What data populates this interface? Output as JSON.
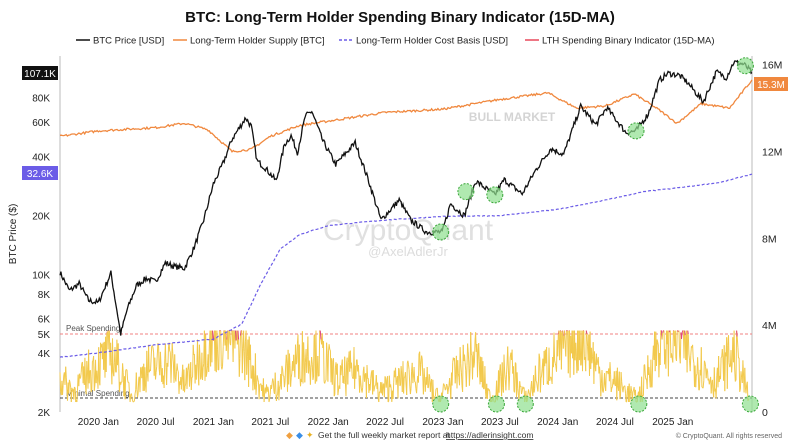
{
  "chart_data": {
    "type": "line",
    "title": "BTC: Long-Term Holder Spending Binary Indicator (15D-MA)",
    "ylabel": "BTC Price ($)",
    "y_scale": "log",
    "ylim": [
      2000,
      130000
    ],
    "y_ticks": [
      "2K",
      "4K",
      "5K",
      "6K",
      "8K",
      "10K",
      "20K",
      "40K",
      "60K",
      "80K"
    ],
    "y_tick_values": [
      2000,
      4000,
      5000,
      6000,
      8000,
      10000,
      20000,
      40000,
      60000,
      80000
    ],
    "y2_ticks": [
      "0",
      "4M",
      "8M",
      "12M",
      "16M"
    ],
    "y2_tick_values": [
      0,
      4,
      8,
      12,
      16
    ],
    "y2_unit": "M BTC",
    "y2_lim": [
      0,
      16.4
    ],
    "x_range": [
      "2019-09-01",
      "2025-09-10"
    ],
    "x_ticks": [
      "2020 Jan",
      "2020 Jul",
      "2021 Jan",
      "2021 Jul",
      "2022 Jan",
      "2022 Jul",
      "2023 Jan",
      "2023 Jul",
      "2024 Jan",
      "2024 Jul",
      "2025 Jan"
    ],
    "x_tick_dates": [
      "2020-01-01",
      "2020-07-01",
      "2021-01-01",
      "2021-07-01",
      "2022-01-01",
      "2022-07-01",
      "2023-01-01",
      "2023-07-01",
      "2024-01-01",
      "2024-07-01",
      "2025-01-01"
    ],
    "legend": {
      "placement": "top",
      "entries": [
        {
          "label": "BTC Price [USD]",
          "color": "#111111",
          "style": "solid"
        },
        {
          "label": "Long-Term Holder Supply [BTC]",
          "color": "#f0883e",
          "style": "solid"
        },
        {
          "label": "Long-Term Holder Cost Basis [USD]",
          "color": "#6b5ce7",
          "style": "dashed"
        },
        {
          "label": "LTH Spending Binary Indicator (15D-MA)",
          "color": "#e8485a",
          "style": "solid"
        }
      ]
    },
    "current_price_badge": "107.1K",
    "cost_basis_badge": "32.6K",
    "supply_badge": "15.3M",
    "annotations": {
      "peak": "Peak Spending",
      "minimal": "Minimal Spending",
      "bull": "BULL MARKET"
    },
    "btc_price": [
      [
        "2019-09-01",
        10300
      ],
      [
        "2019-10-01",
        8300
      ],
      [
        "2019-11-01",
        9000
      ],
      [
        "2019-12-01",
        7400
      ],
      [
        "2020-01-01",
        7200
      ],
      [
        "2020-02-10",
        10200
      ],
      [
        "2020-03-12",
        5000
      ],
      [
        "2020-04-01",
        6600
      ],
      [
        "2020-05-01",
        8800
      ],
      [
        "2020-06-01",
        9600
      ],
      [
        "2020-07-01",
        9200
      ],
      [
        "2020-08-01",
        11500
      ],
      [
        "2020-09-01",
        11000
      ],
      [
        "2020-10-01",
        10800
      ],
      [
        "2020-11-01",
        13800
      ],
      [
        "2020-12-01",
        19000
      ],
      [
        "2021-01-01",
        29000
      ],
      [
        "2021-02-01",
        37000
      ],
      [
        "2021-03-01",
        49000
      ],
      [
        "2021-04-14",
        63000
      ],
      [
        "2021-05-01",
        57000
      ],
      [
        "2021-05-20",
        38000
      ],
      [
        "2021-06-15",
        35000
      ],
      [
        "2021-07-20",
        30000
      ],
      [
        "2021-08-15",
        46000
      ],
      [
        "2021-09-05",
        51000
      ],
      [
        "2021-09-25",
        42000
      ],
      [
        "2021-10-20",
        64000
      ],
      [
        "2021-11-10",
        68000
      ],
      [
        "2021-12-15",
        48000
      ],
      [
        "2022-01-25",
        36500
      ],
      [
        "2022-03-28",
        47000
      ],
      [
        "2022-05-10",
        30000
      ],
      [
        "2022-06-18",
        19000
      ],
      [
        "2022-08-15",
        24000
      ],
      [
        "2022-09-20",
        19000
      ],
      [
        "2022-11-10",
        16500
      ],
      [
        "2022-12-30",
        16500
      ],
      [
        "2023-01-25",
        23000
      ],
      [
        "2023-03-10",
        20000
      ],
      [
        "2023-04-15",
        30000
      ],
      [
        "2023-06-15",
        25500
      ],
      [
        "2023-07-15",
        30500
      ],
      [
        "2023-09-10",
        25800
      ],
      [
        "2023-10-25",
        34500
      ],
      [
        "2023-12-10",
        44000
      ],
      [
        "2024-01-20",
        41000
      ],
      [
        "2024-03-14",
        72000
      ],
      [
        "2024-05-01",
        58000
      ],
      [
        "2024-06-05",
        71000
      ],
      [
        "2024-08-05",
        53000
      ],
      [
        "2024-09-06",
        54000
      ],
      [
        "2024-10-15",
        66000
      ],
      [
        "2024-11-20",
        98000
      ],
      [
        "2024-12-17",
        106000
      ],
      [
        "2025-01-20",
        104000
      ],
      [
        "2025-02-15",
        96000
      ],
      [
        "2025-04-08",
        76000
      ],
      [
        "2025-05-20",
        108000
      ],
      [
        "2025-06-20",
        101000
      ],
      [
        "2025-07-14",
        121000
      ],
      [
        "2025-08-15",
        118000
      ],
      [
        "2025-09-10",
        107100
      ]
    ],
    "lth_supply_m": [
      [
        "2019-09-01",
        12.7
      ],
      [
        "2020-01-01",
        12.95
      ],
      [
        "2020-07-01",
        13.1
      ],
      [
        "2020-10-01",
        13.3
      ],
      [
        "2020-12-15",
        13.0
      ],
      [
        "2021-03-01",
        12.0
      ],
      [
        "2021-05-01",
        12.1
      ],
      [
        "2021-07-01",
        12.7
      ],
      [
        "2021-10-01",
        13.2
      ],
      [
        "2022-01-01",
        13.4
      ],
      [
        "2022-07-01",
        13.8
      ],
      [
        "2023-01-01",
        13.95
      ],
      [
        "2023-07-01",
        14.4
      ],
      [
        "2023-12-01",
        14.7
      ],
      [
        "2024-03-01",
        14.0
      ],
      [
        "2024-06-01",
        14.1
      ],
      [
        "2024-09-01",
        14.65
      ],
      [
        "2024-11-15",
        13.95
      ],
      [
        "2025-01-15",
        13.3
      ],
      [
        "2025-04-01",
        14.2
      ],
      [
        "2025-07-01",
        14.0
      ],
      [
        "2025-09-10",
        15.3
      ]
    ],
    "lth_cost_basis": [
      [
        "2019-09-01",
        3800
      ],
      [
        "2020-01-01",
        4000
      ],
      [
        "2020-07-01",
        4400
      ],
      [
        "2021-01-01",
        4700
      ],
      [
        "2021-04-01",
        5600
      ],
      [
        "2021-06-01",
        9000
      ],
      [
        "2021-08-01",
        13500
      ],
      [
        "2021-10-01",
        16000
      ],
      [
        "2022-01-01",
        17800
      ],
      [
        "2022-07-01",
        19000
      ],
      [
        "2023-01-01",
        19800
      ],
      [
        "2023-07-01",
        20000
      ],
      [
        "2024-01-01",
        21500
      ],
      [
        "2024-06-01",
        24000
      ],
      [
        "2024-10-01",
        26500
      ],
      [
        "2025-01-01",
        27500
      ],
      [
        "2025-06-01",
        29500
      ],
      [
        "2025-09-10",
        32600
      ]
    ],
    "lth_spending_indicator": [
      [
        "2019-09-01",
        0.35
      ],
      [
        "2019-10-15",
        0.15
      ],
      [
        "2019-12-01",
        0.45
      ],
      [
        "2020-02-15",
        0.7
      ],
      [
        "2020-04-15",
        0.1
      ],
      [
        "2020-06-01",
        0.5
      ],
      [
        "2020-08-15",
        0.6
      ],
      [
        "2020-10-01",
        0.25
      ],
      [
        "2020-12-15",
        0.9
      ],
      [
        "2021-02-01",
        1.0
      ],
      [
        "2021-04-01",
        0.85
      ],
      [
        "2021-06-15",
        0.1
      ],
      [
        "2021-08-01",
        0.3
      ],
      [
        "2021-10-01",
        0.65
      ],
      [
        "2021-12-01",
        0.75
      ],
      [
        "2022-02-01",
        0.3
      ],
      [
        "2022-04-01",
        0.5
      ],
      [
        "2022-06-15",
        0.15
      ],
      [
        "2022-08-15",
        0.3
      ],
      [
        "2022-10-15",
        0.45
      ],
      [
        "2022-12-20",
        0.02
      ],
      [
        "2023-02-01",
        0.35
      ],
      [
        "2023-04-15",
        0.7
      ],
      [
        "2023-06-01",
        0.02
      ],
      [
        "2023-08-01",
        0.55
      ],
      [
        "2023-09-20",
        0.02
      ],
      [
        "2023-11-01",
        0.4
      ],
      [
        "2024-01-01",
        0.7
      ],
      [
        "2024-03-20",
        1.0
      ],
      [
        "2024-05-15",
        0.4
      ],
      [
        "2024-07-01",
        0.3
      ],
      [
        "2024-09-10",
        0.02
      ],
      [
        "2024-11-20",
        0.9
      ],
      [
        "2025-01-15",
        0.95
      ],
      [
        "2025-03-15",
        0.6
      ],
      [
        "2025-05-15",
        0.3
      ],
      [
        "2025-07-15",
        0.75
      ],
      [
        "2025-09-01",
        0.05
      ]
    ],
    "highlight_markers": [
      {
        "date": "2022-12-25",
        "price": 16500
      },
      {
        "date": "2023-03-15",
        "price": 26500
      },
      {
        "date": "2023-06-15",
        "price": 25500
      },
      {
        "date": "2024-09-06",
        "price": 54000
      },
      {
        "date": "2025-08-20",
        "price": 116000
      }
    ],
    "zero_markers": [
      "2022-12-25",
      "2023-06-20",
      "2023-09-20",
      "2024-09-15",
      "2025-09-05"
    ]
  },
  "footer": {
    "text": "Get the full weekly market report at",
    "link": "https://adlerinsight.com",
    "copyright": "© CryptoQuant. All rights reserved"
  },
  "watermark": {
    "brand": "CryptoQuant",
    "handle": "@AxelAdlerJr"
  },
  "colors": {
    "price": "#111111",
    "supply": "#f0883e",
    "cost_basis": "#6b5ce7",
    "indicator_low": "#f2c94c",
    "indicator_high": "#e0457b",
    "marker": "#8fe08f"
  }
}
